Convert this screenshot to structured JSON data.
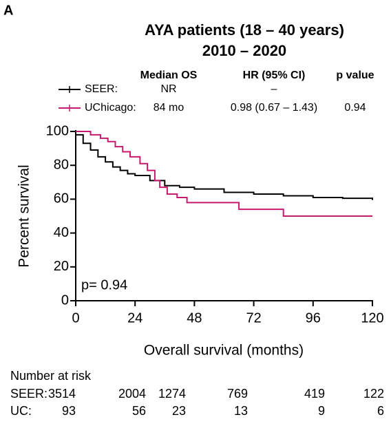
{
  "chart_data": {
    "type": "line",
    "step": true,
    "panel_label": "A",
    "title": "AYA patients (18 – 40 years)",
    "subtitle": "2010 – 2020",
    "x_label": "Overall survival (months)",
    "y_label": "Percent survival",
    "annotation": "p= 0.94",
    "xlim": [
      0,
      120
    ],
    "ylim": [
      0,
      100
    ],
    "xticks": [
      0,
      24,
      48,
      72,
      96,
      120
    ],
    "yticks": [
      0,
      20,
      40,
      60,
      80,
      100
    ],
    "series": [
      {
        "name": "SEER:",
        "color": "#000000",
        "x": [
          0,
          3,
          6,
          9,
          12,
          15,
          18,
          21,
          24,
          30,
          36,
          42,
          48,
          60,
          72,
          84,
          96,
          108,
          120
        ],
        "values": [
          98,
          93,
          89,
          85,
          82,
          79,
          77,
          75,
          74,
          71,
          68,
          67,
          66,
          64,
          63,
          62,
          61,
          60.5,
          59.5
        ]
      },
      {
        "name": "UChicago:",
        "color": "#c8186e",
        "x": [
          0,
          6,
          10,
          13,
          16,
          19,
          22,
          26,
          29,
          32,
          34,
          37,
          41,
          45,
          66,
          84,
          120
        ],
        "values": [
          100,
          98,
          96,
          94,
          91,
          88,
          85,
          81,
          77,
          71,
          67,
          63,
          61,
          58,
          54,
          50,
          50
        ]
      }
    ],
    "legend_table": {
      "headers": [
        "Median OS",
        "HR (95% CI)",
        "p value"
      ],
      "rows": [
        [
          "NR",
          "–"
        ],
        [
          "84 mo",
          "0.98 (0.67 – 1.43)",
          "0.94"
        ]
      ]
    },
    "number_at_risk": {
      "title": "Number at risk",
      "rows": [
        {
          "label": "SEER:",
          "values": [
            3514,
            2004,
            1274,
            769,
            419,
            122
          ]
        },
        {
          "label": "UC:",
          "values": [
            93,
            56,
            23,
            13,
            9,
            6
          ]
        }
      ]
    }
  }
}
